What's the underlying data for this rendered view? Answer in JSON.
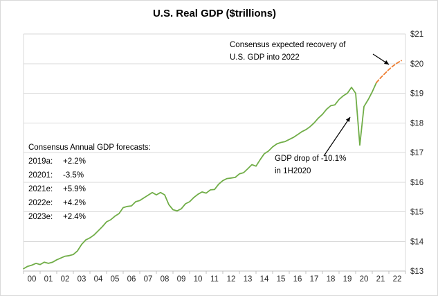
{
  "title": "U.S. Real GDP ($trillions)",
  "annotations": {
    "recovery": {
      "line1": "Consensus expected recovery of",
      "line2": "U.S. GDP into 2022"
    },
    "drop": {
      "line1": "GDP drop of -10.1%",
      "line2": "in 1H2020"
    },
    "forecasts": {
      "heading": "Consensus Annual GDP forecasts:",
      "rows": [
        {
          "label": "2019a:",
          "value": "+2.2%"
        },
        {
          "label": "20201:",
          "value": "-3.5%"
        },
        {
          "label": "2021e:",
          "value": "+5.9%"
        },
        {
          "label": "2022e:",
          "value": "+4.2%"
        },
        {
          "label": "2023e:",
          "value": "+2.4%"
        }
      ]
    }
  },
  "colors": {
    "actual_line": "#70AD47",
    "forecast_line": "#ED7D31",
    "gridline": "#D9D9D9",
    "axis": "#BFBFBF",
    "tick_text": "#262626",
    "annotation_arrow": "#000000"
  },
  "chart_data": {
    "type": "line",
    "title": "U.S. Real GDP ($trillions)",
    "xlim": [
      2000,
      2023
    ],
    "ylim": [
      13,
      21
    ],
    "grid": true,
    "legend": "none",
    "x_tick_labels": [
      "00",
      "01",
      "02",
      "03",
      "04",
      "05",
      "06",
      "07",
      "08",
      "09",
      "10",
      "11",
      "12",
      "13",
      "14",
      "15",
      "16",
      "17",
      "18",
      "19",
      "20",
      "21",
      "22"
    ],
    "y_ticks": [
      {
        "value": 13,
        "label": "$13"
      },
      {
        "value": 14,
        "label": "$14"
      },
      {
        "value": 15,
        "label": "$15"
      },
      {
        "value": 16,
        "label": "$16"
      },
      {
        "value": 17,
        "label": "$17"
      },
      {
        "value": 18,
        "label": "$18"
      },
      {
        "value": 19,
        "label": "$19"
      },
      {
        "value": 20,
        "label": "$20"
      },
      {
        "value": 21,
        "label": "$21"
      }
    ],
    "series": [
      {
        "name": "U.S. Real GDP (actual)",
        "style": "solid",
        "color": "#70AD47",
        "points": [
          [
            2000.0,
            13.08
          ],
          [
            2000.25,
            13.16
          ],
          [
            2000.5,
            13.2
          ],
          [
            2000.75,
            13.26
          ],
          [
            2001.0,
            13.22
          ],
          [
            2001.25,
            13.3
          ],
          [
            2001.5,
            13.26
          ],
          [
            2001.75,
            13.3
          ],
          [
            2002.0,
            13.38
          ],
          [
            2002.25,
            13.44
          ],
          [
            2002.5,
            13.5
          ],
          [
            2002.75,
            13.52
          ],
          [
            2003.0,
            13.56
          ],
          [
            2003.25,
            13.68
          ],
          [
            2003.5,
            13.9
          ],
          [
            2003.75,
            14.05
          ],
          [
            2004.0,
            14.12
          ],
          [
            2004.25,
            14.22
          ],
          [
            2004.5,
            14.36
          ],
          [
            2004.75,
            14.5
          ],
          [
            2005.0,
            14.66
          ],
          [
            2005.25,
            14.73
          ],
          [
            2005.5,
            14.85
          ],
          [
            2005.75,
            14.94
          ],
          [
            2006.0,
            15.14
          ],
          [
            2006.25,
            15.18
          ],
          [
            2006.5,
            15.2
          ],
          [
            2006.75,
            15.34
          ],
          [
            2007.0,
            15.38
          ],
          [
            2007.25,
            15.47
          ],
          [
            2007.5,
            15.56
          ],
          [
            2007.75,
            15.65
          ],
          [
            2008.0,
            15.57
          ],
          [
            2008.25,
            15.65
          ],
          [
            2008.5,
            15.57
          ],
          [
            2008.75,
            15.24
          ],
          [
            2009.0,
            15.07
          ],
          [
            2009.25,
            15.03
          ],
          [
            2009.5,
            15.1
          ],
          [
            2009.75,
            15.27
          ],
          [
            2010.0,
            15.34
          ],
          [
            2010.25,
            15.48
          ],
          [
            2010.5,
            15.59
          ],
          [
            2010.75,
            15.67
          ],
          [
            2011.0,
            15.63
          ],
          [
            2011.25,
            15.74
          ],
          [
            2011.5,
            15.75
          ],
          [
            2011.75,
            15.93
          ],
          [
            2012.0,
            16.05
          ],
          [
            2012.25,
            16.12
          ],
          [
            2012.5,
            16.14
          ],
          [
            2012.75,
            16.16
          ],
          [
            2013.0,
            16.28
          ],
          [
            2013.25,
            16.32
          ],
          [
            2013.5,
            16.45
          ],
          [
            2013.75,
            16.59
          ],
          [
            2014.0,
            16.54
          ],
          [
            2014.25,
            16.76
          ],
          [
            2014.5,
            16.96
          ],
          [
            2014.75,
            17.05
          ],
          [
            2015.0,
            17.19
          ],
          [
            2015.25,
            17.29
          ],
          [
            2015.5,
            17.34
          ],
          [
            2015.75,
            17.37
          ],
          [
            2016.0,
            17.44
          ],
          [
            2016.25,
            17.51
          ],
          [
            2016.5,
            17.6
          ],
          [
            2016.75,
            17.7
          ],
          [
            2017.0,
            17.77
          ],
          [
            2017.25,
            17.87
          ],
          [
            2017.5,
            18.0
          ],
          [
            2017.75,
            18.16
          ],
          [
            2018.0,
            18.29
          ],
          [
            2018.25,
            18.46
          ],
          [
            2018.5,
            18.58
          ],
          [
            2018.75,
            18.61
          ],
          [
            2019.0,
            18.79
          ],
          [
            2019.25,
            18.91
          ],
          [
            2019.5,
            19.0
          ],
          [
            2019.75,
            19.2
          ],
          [
            2020.0,
            19.0
          ],
          [
            2020.25,
            17.25
          ],
          [
            2020.5,
            18.55
          ],
          [
            2020.75,
            18.78
          ],
          [
            2021.0,
            19.05
          ],
          [
            2021.25,
            19.36
          ]
        ]
      },
      {
        "name": "Consensus expected recovery (forecast)",
        "style": "dashed",
        "color": "#ED7D31",
        "points": [
          [
            2021.25,
            19.36
          ],
          [
            2021.5,
            19.52
          ],
          [
            2021.75,
            19.66
          ],
          [
            2022.0,
            19.8
          ],
          [
            2022.25,
            19.92
          ],
          [
            2022.5,
            20.02
          ],
          [
            2022.75,
            20.1
          ]
        ]
      }
    ]
  }
}
